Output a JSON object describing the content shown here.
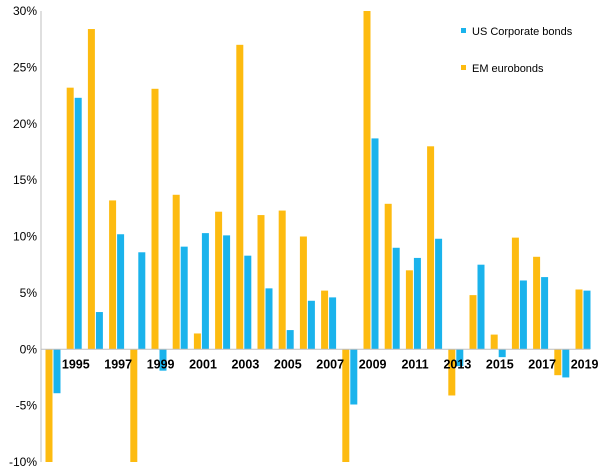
{
  "chart_data": {
    "type": "bar",
    "title": "",
    "xlabel": "",
    "ylabel": "",
    "categories": [
      "1994",
      "1995",
      "1996",
      "1997",
      "1998",
      "1999",
      "2000",
      "2001",
      "2002",
      "2003",
      "2004",
      "2005",
      "2006",
      "2007",
      "2008",
      "2009",
      "2010",
      "2011",
      "2012",
      "2013",
      "2014",
      "2015",
      "2016",
      "2017",
      "2018",
      "2019"
    ],
    "x_tick_labels": [
      "1995",
      "1997",
      "1999",
      "2001",
      "2003",
      "2005",
      "2007",
      "2009",
      "2011",
      "2013",
      "2015",
      "2017",
      "2019"
    ],
    "y_ticks": [
      -10,
      -5,
      0,
      5,
      10,
      15,
      20,
      25,
      30
    ],
    "y_tick_labels": [
      "-10%",
      "-5%",
      "0%",
      "5%",
      "10%",
      "15%",
      "20%",
      "25%",
      "30%"
    ],
    "ylim": [
      -10,
      30
    ],
    "grid": false,
    "legend_position": "top-right",
    "series": [
      {
        "name": "US Corporate bonds",
        "color": "#1ab3ec",
        "values": [
          -3.9,
          22.3,
          3.3,
          10.2,
          8.6,
          -1.9,
          9.1,
          10.3,
          10.1,
          8.3,
          5.4,
          1.7,
          4.3,
          4.6,
          -4.9,
          18.7,
          9.0,
          8.1,
          9.8,
          -1.5,
          7.5,
          -0.7,
          6.1,
          6.4,
          -2.5,
          5.2
        ]
      },
      {
        "name": "EM eurobonds",
        "color": "#fdbb10",
        "values": [
          -10,
          23.2,
          28.4,
          13.2,
          -10,
          23.1,
          13.7,
          1.4,
          12.2,
          27.0,
          11.9,
          12.3,
          10.0,
          5.2,
          -10,
          30.0,
          12.9,
          7.0,
          18.0,
          -4.1,
          4.8,
          1.3,
          9.9,
          8.2,
          -2.3,
          5.3
        ]
      }
    ]
  }
}
